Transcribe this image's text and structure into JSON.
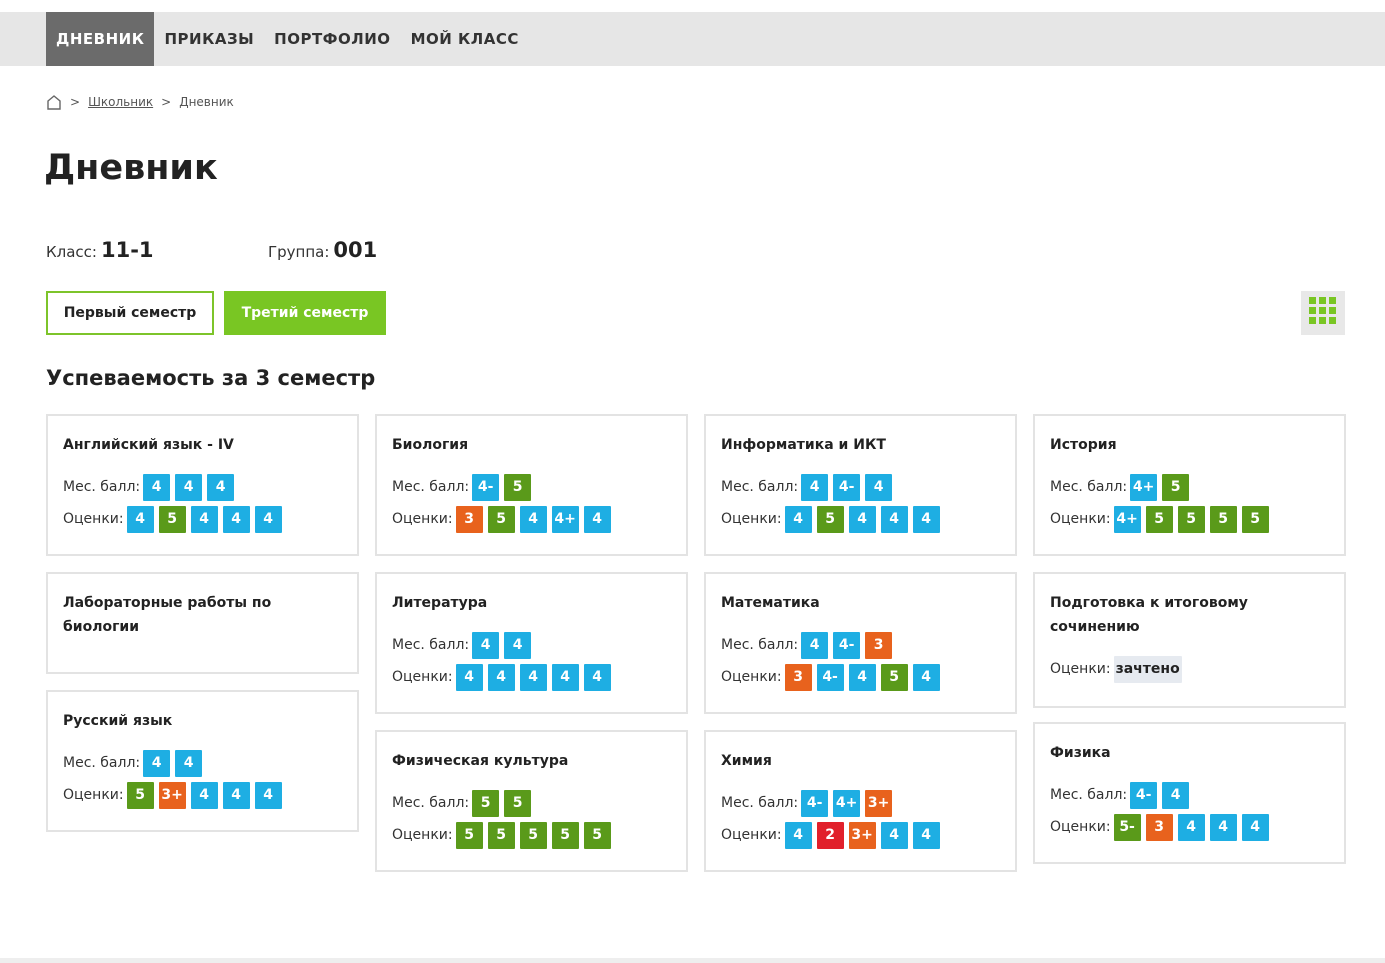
{
  "nav": [
    "ДНЕВНИК",
    "ПРИКАЗЫ",
    "ПОРТФОЛИО",
    "МОЙ КЛАСС"
  ],
  "breadcrumb": {
    "sep": ">",
    "link": "Школьник",
    "current": "Дневник"
  },
  "title": "Дневник",
  "info": {
    "class_label": "Класс:",
    "class_value": "11-1",
    "group_label": "Группа:",
    "group_value": "001"
  },
  "semesters": [
    "Первый семестр",
    "Третий семестр"
  ],
  "section_title": "Успеваемость за 3 семестр",
  "labels": {
    "month": "Мес. балл:",
    "grades": "Оценки:"
  },
  "subjects": [
    {
      "name": "Английский язык - IV",
      "month": [
        [
          "4",
          "blue"
        ],
        [
          "4",
          "blue"
        ],
        [
          "4",
          "blue"
        ]
      ],
      "grades": [
        [
          "4",
          "blue"
        ],
        [
          "5",
          "green"
        ],
        [
          "4",
          "blue"
        ],
        [
          "4",
          "blue"
        ],
        [
          "4",
          "blue"
        ]
      ]
    },
    {
      "name": "Биология",
      "month": [
        [
          "4-",
          "blue"
        ],
        [
          "5",
          "green"
        ]
      ],
      "grades": [
        [
          "3",
          "orange"
        ],
        [
          "5",
          "green"
        ],
        [
          "4",
          "blue"
        ],
        [
          "4+",
          "blue"
        ],
        [
          "4",
          "blue"
        ]
      ]
    },
    {
      "name": "Информатика и ИКТ",
      "month": [
        [
          "4",
          "blue"
        ],
        [
          "4-",
          "blue"
        ],
        [
          "4",
          "blue"
        ]
      ],
      "grades": [
        [
          "4",
          "blue"
        ],
        [
          "5",
          "green"
        ],
        [
          "4",
          "blue"
        ],
        [
          "4",
          "blue"
        ],
        [
          "4",
          "blue"
        ]
      ]
    },
    {
      "name": "История",
      "month": [
        [
          "4+",
          "blue"
        ],
        [
          "5",
          "green"
        ]
      ],
      "grades": [
        [
          "4+",
          "blue"
        ],
        [
          "5",
          "green"
        ],
        [
          "5",
          "green"
        ],
        [
          "5",
          "green"
        ],
        [
          "5",
          "green"
        ]
      ]
    },
    {
      "name": "Лабораторные работы по биологии",
      "month": [],
      "grades": []
    },
    {
      "name": "Литература",
      "month": [
        [
          "4",
          "blue"
        ],
        [
          "4",
          "blue"
        ]
      ],
      "grades": [
        [
          "4",
          "blue"
        ],
        [
          "4",
          "blue"
        ],
        [
          "4",
          "blue"
        ],
        [
          "4",
          "blue"
        ],
        [
          "4",
          "blue"
        ]
      ]
    },
    {
      "name": "Математика",
      "month": [
        [
          "4",
          "blue"
        ],
        [
          "4-",
          "blue"
        ],
        [
          "3",
          "orange"
        ]
      ],
      "grades": [
        [
          "3",
          "orange"
        ],
        [
          "4-",
          "blue"
        ],
        [
          "4",
          "blue"
        ],
        [
          "5",
          "green"
        ],
        [
          "4",
          "blue"
        ]
      ]
    },
    {
      "name": "Подготовка к итоговому сочинению",
      "month": [],
      "grades": [
        [
          "зачтено",
          "text"
        ]
      ]
    },
    {
      "name": "Русский язык",
      "month": [
        [
          "4",
          "blue"
        ],
        [
          "4",
          "blue"
        ]
      ],
      "grades": [
        [
          "5",
          "green"
        ],
        [
          "3+",
          "orange"
        ],
        [
          "4",
          "blue"
        ],
        [
          "4",
          "blue"
        ],
        [
          "4",
          "blue"
        ]
      ]
    },
    {
      "name": "Физическая культура",
      "month": [
        [
          "5",
          "green"
        ],
        [
          "5",
          "green"
        ]
      ],
      "grades": [
        [
          "5",
          "green"
        ],
        [
          "5",
          "green"
        ],
        [
          "5",
          "green"
        ],
        [
          "5",
          "green"
        ],
        [
          "5",
          "green"
        ]
      ]
    },
    {
      "name": "Химия",
      "month": [
        [
          "4-",
          "blue"
        ],
        [
          "4+",
          "blue"
        ],
        [
          "3+",
          "orange"
        ]
      ],
      "grades": [
        [
          "4",
          "blue"
        ],
        [
          "2",
          "red"
        ],
        [
          "3+",
          "orange"
        ],
        [
          "4",
          "blue"
        ],
        [
          "4",
          "blue"
        ]
      ]
    },
    {
      "name": "Физика",
      "month": [
        [
          "4-",
          "blue"
        ],
        [
          "4",
          "blue"
        ]
      ],
      "grades": [
        [
          "5-",
          "green"
        ],
        [
          "3",
          "orange"
        ],
        [
          "4",
          "blue"
        ],
        [
          "4",
          "blue"
        ],
        [
          "4",
          "blue"
        ]
      ]
    }
  ]
}
